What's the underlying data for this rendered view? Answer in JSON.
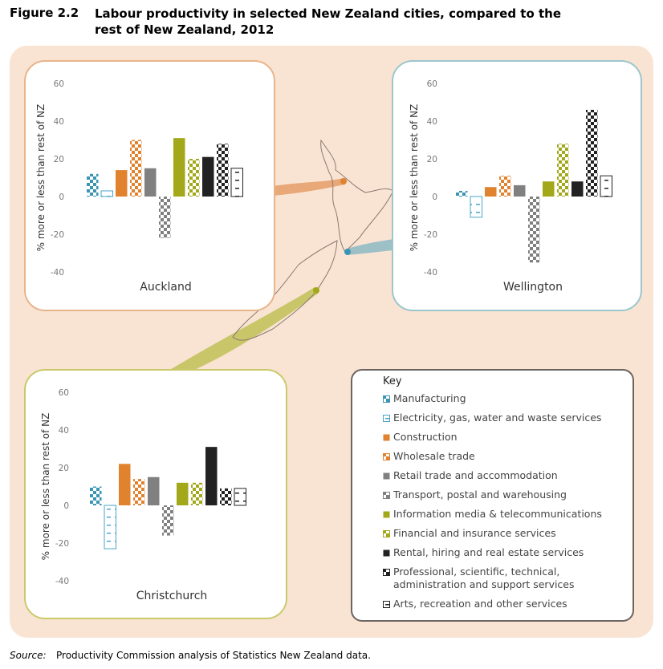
{
  "figure": {
    "number": "Figure 2.2",
    "title": "Labour productivity in selected New Zealand cities, compared to the rest of New Zealand, 2012"
  },
  "chart_data": [
    {
      "type": "bar",
      "title": "Auckland",
      "ylabel": "% more or less than rest of NZ",
      "values": [
        12,
        3,
        14,
        30,
        15,
        -22,
        31,
        20,
        21,
        28,
        15
      ],
      "ylim": [
        -40,
        60
      ],
      "yticks": [
        -40,
        -20,
        0,
        20,
        40,
        60
      ]
    },
    {
      "type": "bar",
      "title": "Wellington",
      "ylabel": "% more or less than rest of NZ",
      "values": [
        3,
        -11,
        5,
        11,
        6,
        -35,
        8,
        28,
        8,
        46,
        11
      ],
      "ylim": [
        -40,
        60
      ],
      "yticks": [
        -40,
        -20,
        0,
        20,
        40,
        60
      ]
    },
    {
      "type": "bar",
      "title": "Christchurch",
      "ylabel": "% more or less than rest of NZ",
      "values": [
        10,
        -23,
        22,
        14,
        15,
        -16,
        12,
        12,
        31,
        9,
        9
      ],
      "ylim": [
        -40,
        60
      ],
      "yticks": [
        -40,
        -20,
        0,
        20,
        40,
        60
      ]
    }
  ],
  "key": {
    "title": "Key",
    "items": [
      {
        "label": "Manufacturing",
        "color": "#3a95b5",
        "pattern": "checker"
      },
      {
        "label": "Electricity, gas, water and waste services",
        "color": "#4aa6c6",
        "pattern": "dash"
      },
      {
        "label": "Construction",
        "color": "#e0822e",
        "pattern": "solid"
      },
      {
        "label": "Wholesale trade",
        "color": "#e0822e",
        "pattern": "checker"
      },
      {
        "label": "Retail trade and accommodation",
        "color": "#808080",
        "pattern": "solid"
      },
      {
        "label": "Transport, postal and warehousing",
        "color": "#808080",
        "pattern": "checker"
      },
      {
        "label": "Information media & telecommunications",
        "color": "#a3a81a",
        "pattern": "solid"
      },
      {
        "label": "Financial and insurance services",
        "color": "#a3a81a",
        "pattern": "checker"
      },
      {
        "label": "Rental, hiring and real estate services",
        "color": "#222222",
        "pattern": "solid"
      },
      {
        "label": "Professional, scientific, technical, administration and support services",
        "color": "#222222",
        "pattern": "checker"
      },
      {
        "label": "Arts, recreation and other services",
        "color": "#222222",
        "pattern": "dash"
      }
    ]
  },
  "source": {
    "label": "Source:",
    "text": "Productivity Commission analysis of Statistics New Zealand data."
  }
}
